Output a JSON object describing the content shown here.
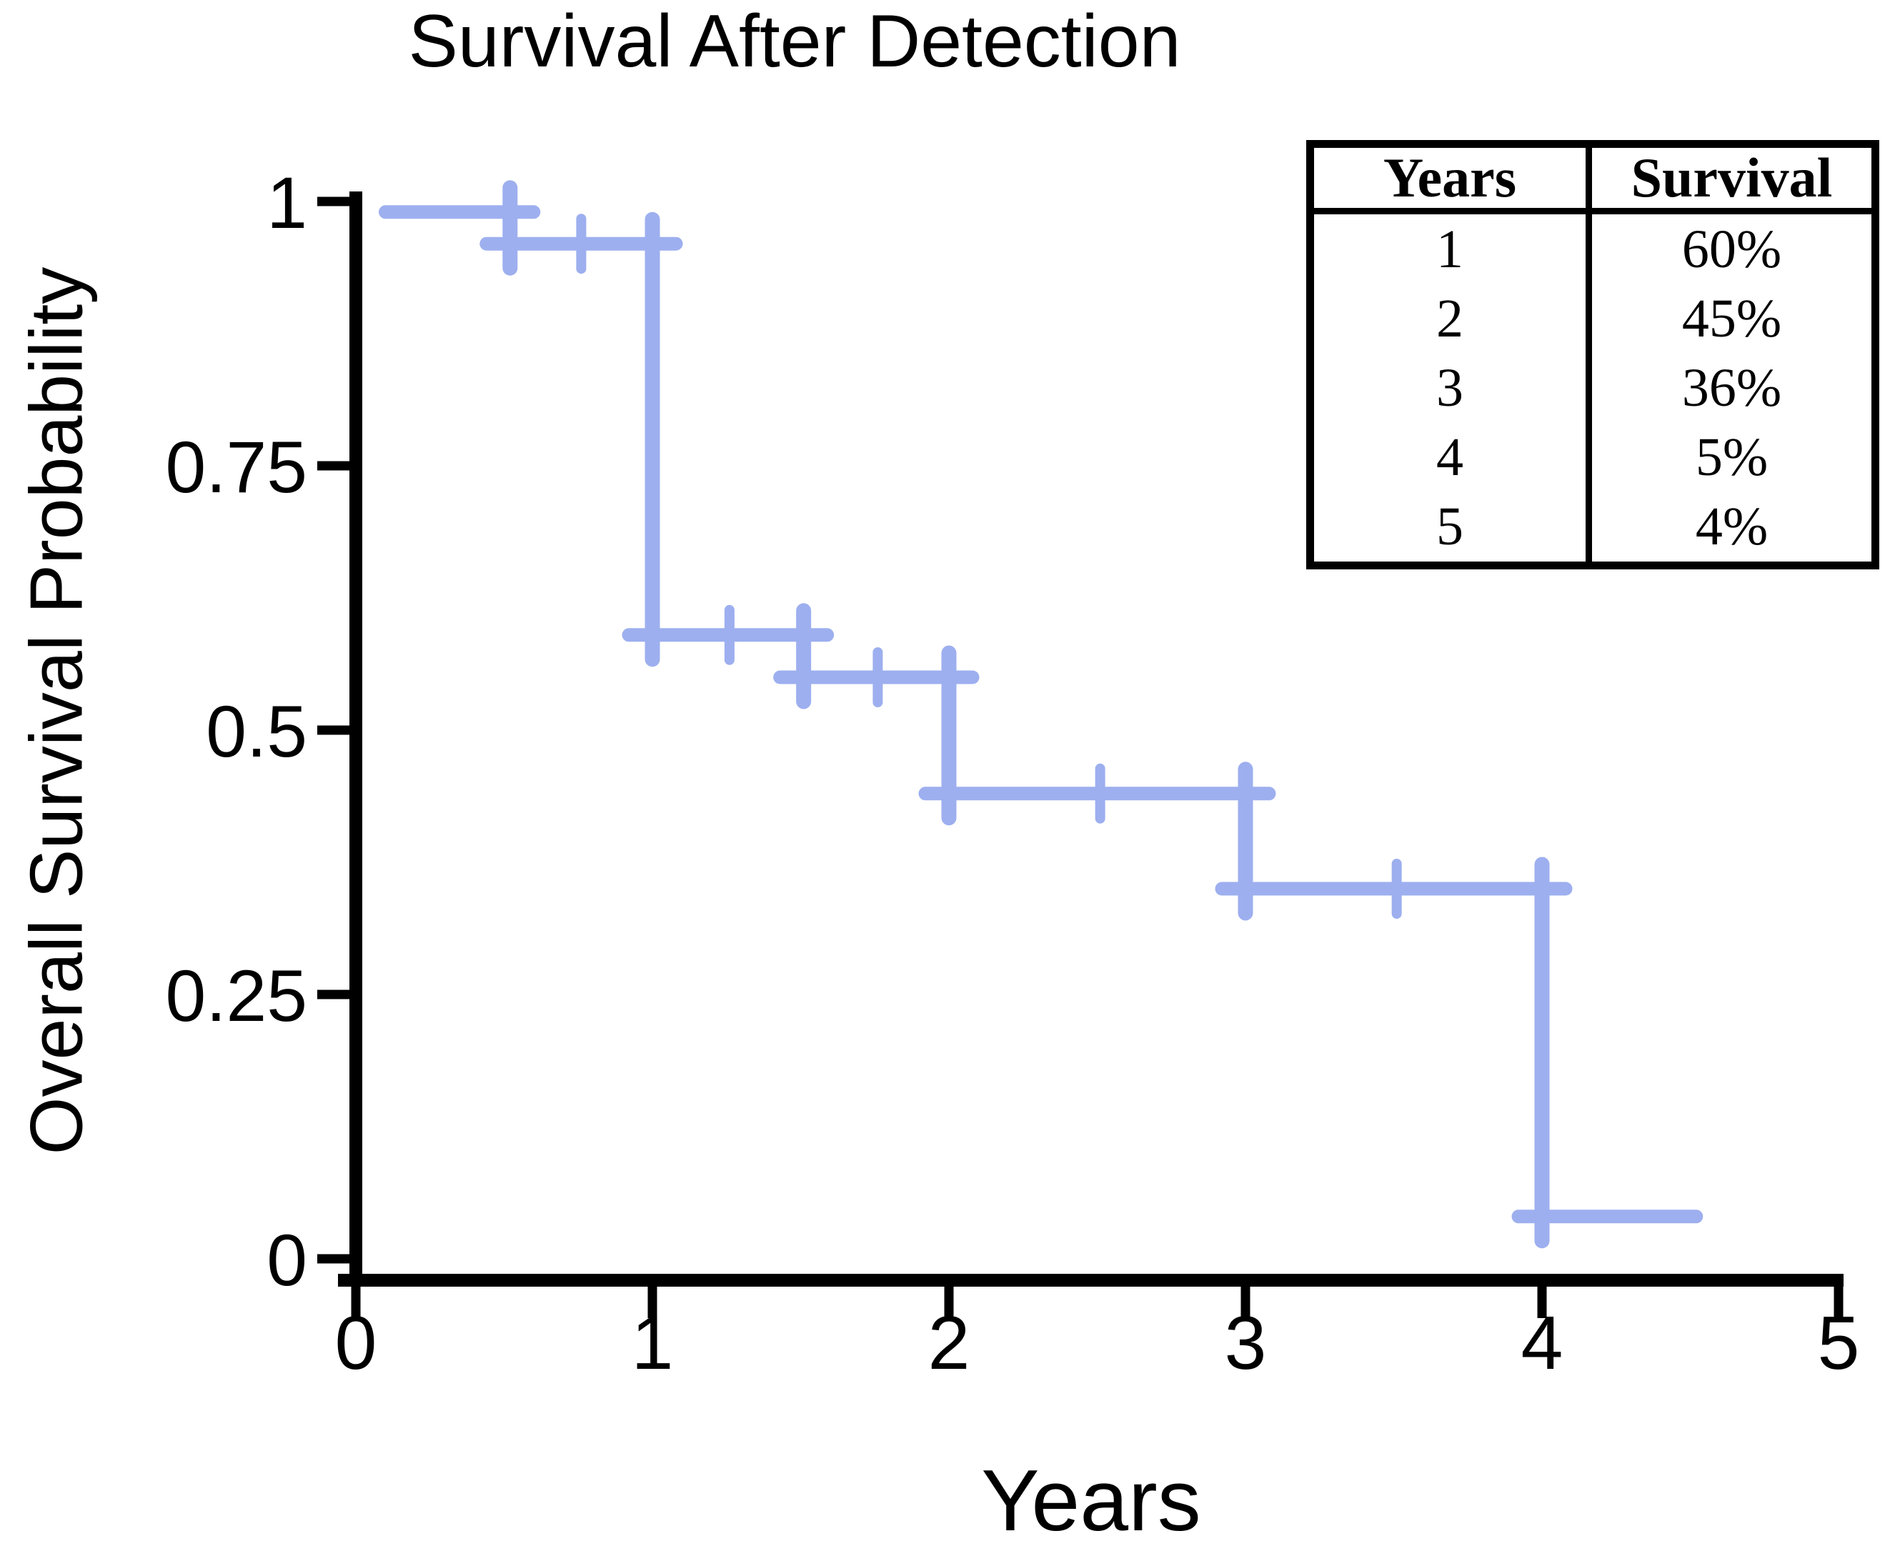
{
  "chart": {
    "title": "Survival After Detection",
    "xlabel": "Years",
    "ylabel": "Overall Survival Probability",
    "curve_color": "#9dafef",
    "axis_color": "#000000"
  },
  "chart_data": {
    "type": "line",
    "style": "kaplan-meier-step",
    "title": "Survival After Detection",
    "xlabel": "Years",
    "ylabel": "Overall Survival Probability",
    "xlim": [
      0,
      5
    ],
    "ylim": [
      0,
      1
    ],
    "xticks": [
      0,
      1,
      2,
      3,
      4,
      5
    ],
    "xtick_labels": [
      "0",
      "1",
      "2",
      "3",
      "4",
      "5"
    ],
    "yticks": [
      1,
      0.75,
      0.5,
      0.25,
      0
    ],
    "ytick_labels": [
      "1",
      "0.75",
      "0.5",
      "0.25",
      "0"
    ],
    "grid": false,
    "legend": false,
    "series": [
      {
        "name": "Overall Survival Probability",
        "color": "#9dafef",
        "steps": [
          {
            "x1": 0.1,
            "x2": 0.52,
            "y": 0.99
          },
          {
            "x1": 0.52,
            "x2": 1.0,
            "y": 0.96
          },
          {
            "x1": 1.0,
            "x2": 1.51,
            "y": 0.59
          },
          {
            "x1": 1.51,
            "x2": 2.0,
            "y": 0.55
          },
          {
            "x1": 2.0,
            "x2": 3.0,
            "y": 0.44
          },
          {
            "x1": 3.0,
            "x2": 4.0,
            "y": 0.35
          },
          {
            "x1": 4.0,
            "x2": 4.52,
            "y": 0.04
          }
        ],
        "censor_ticks": [
          {
            "x": 0.76,
            "y": 0.96
          },
          {
            "x": 1.26,
            "y": 0.59
          },
          {
            "x": 1.76,
            "y": 0.55
          },
          {
            "x": 2.51,
            "y": 0.44
          },
          {
            "x": 3.51,
            "y": 0.35
          }
        ]
      }
    ]
  },
  "table": {
    "headers": [
      "Years",
      "Survival"
    ],
    "rows": [
      [
        "1",
        "60%"
      ],
      [
        "2",
        "45%"
      ],
      [
        "3",
        "36%"
      ],
      [
        "4",
        "5%"
      ],
      [
        "5",
        "4%"
      ]
    ]
  }
}
